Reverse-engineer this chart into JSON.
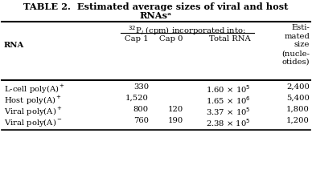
{
  "title_line1": "TABLE 2.  Estimated average sizes of viral and host",
  "title_line2": "RNAsᵃ",
  "col_group_header": "$^{32}$P$_i$ (cpm) incorporated into:",
  "last_col_header": "Esti-\nmated\nsize\n(nucle-\notides)",
  "rows": [
    [
      "L-cell poly(A)$^+$",
      "330",
      "",
      "1.60 × 10$^5$",
      "2,400"
    ],
    [
      "Host poly(A)$^+$",
      "1,520",
      "",
      "1.65 × 10$^6$",
      "5,400"
    ],
    [
      "Viral poly(A)$^+$",
      "800",
      "120",
      "3.37 × 10$^5$",
      "1,800"
    ],
    [
      "Viral poly(A)$^-$",
      "760",
      "190",
      "2.38 × 10$^5$",
      "1,200"
    ]
  ],
  "bg_color": "#ffffff",
  "text_color": "#000000",
  "font_size": 7.2,
  "title_font_size": 8.2,
  "header_font_size": 7.2
}
